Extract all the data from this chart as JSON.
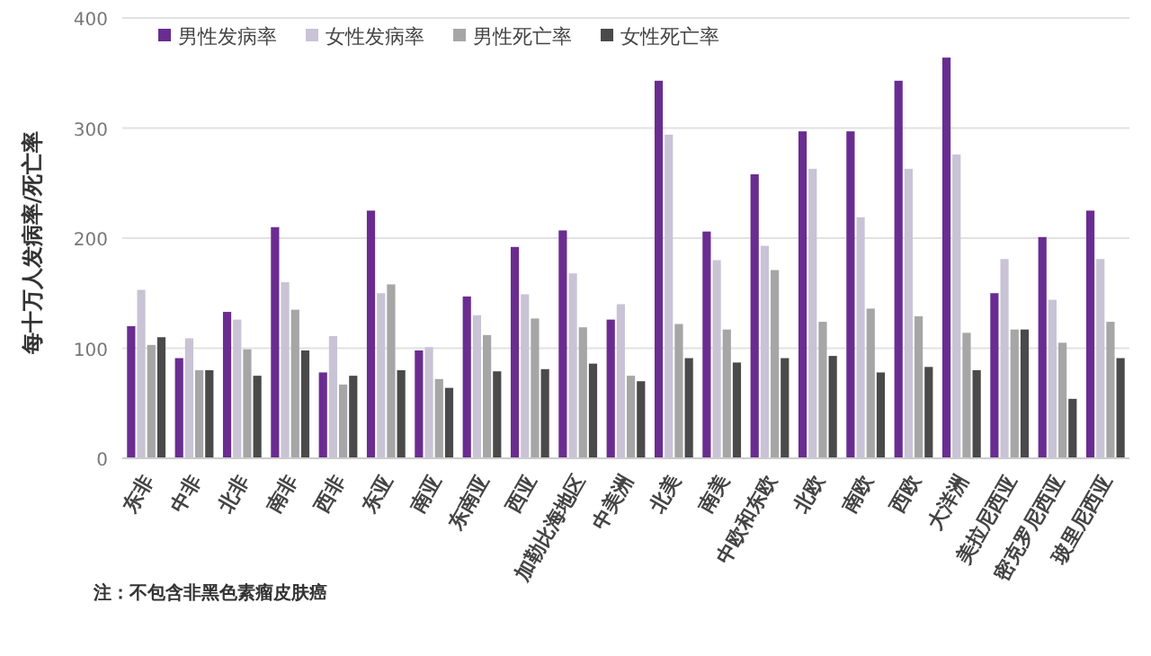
{
  "chart_data": {
    "type": "bar",
    "ylabel": "每十万人发病率/死亡率",
    "categories": [
      "东非",
      "中非",
      "北非",
      "南非",
      "西非",
      "东亚",
      "南亚",
      "东南亚",
      "西亚",
      "加勒比海地区",
      "中美洲",
      "北美",
      "南美",
      "中欧和东欧",
      "北欧",
      "南欧",
      "西欧",
      "大洋洲",
      "美拉尼西亚",
      "密克罗尼西亚",
      "玻里尼西亚"
    ],
    "series": [
      {
        "name": "男性发病率",
        "color": "#6a2c91",
        "values": [
          120,
          91,
          133,
          210,
          78,
          225,
          98,
          147,
          192,
          207,
          126,
          343,
          206,
          258,
          297,
          297,
          343,
          364,
          150,
          201,
          225
        ]
      },
      {
        "name": "女性发病率",
        "color": "#c9c3d6",
        "values": [
          153,
          109,
          126,
          160,
          111,
          150,
          101,
          130,
          149,
          168,
          140,
          294,
          180,
          193,
          263,
          219,
          263,
          276,
          181,
          144,
          181
        ]
      },
      {
        "name": "男性死亡率",
        "color": "#a6a6a6",
        "values": [
          103,
          80,
          99,
          135,
          67,
          158,
          72,
          112,
          127,
          119,
          75,
          122,
          117,
          171,
          124,
          136,
          129,
          114,
          117,
          105,
          124
        ]
      },
      {
        "name": "女性死亡率",
        "color": "#4a4a4a",
        "values": [
          110,
          80,
          75,
          98,
          75,
          80,
          64,
          79,
          81,
          86,
          70,
          91,
          87,
          91,
          93,
          78,
          83,
          80,
          117,
          54,
          91
        ]
      }
    ],
    "ylim": [
      0,
      400
    ],
    "yticks": [
      0,
      100,
      200,
      300,
      400
    ],
    "grid": "y",
    "legend": "top left",
    "annotations": [
      "注：不包含非黑色素瘤皮肤癌"
    ]
  }
}
